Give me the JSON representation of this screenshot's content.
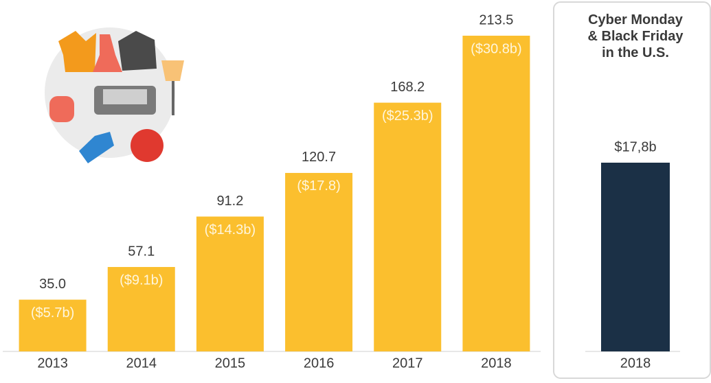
{
  "chart_data": [
    {
      "type": "bar",
      "categories": [
        "2013",
        "2014",
        "2015",
        "2016",
        "2017",
        "2018"
      ],
      "values": [
        35.0,
        57.1,
        91.2,
        120.7,
        168.2,
        213.5
      ],
      "value_labels": [
        "35.0",
        "57.1",
        "91.2",
        "120.7",
        "168.2",
        "213.5"
      ],
      "secondary_labels": [
        "($5.7b)",
        "($9.1b)",
        "($14.3b)",
        "($17.8)",
        "($25.3b)",
        "($30.8b)"
      ],
      "color": "#fbbf2e"
    },
    {
      "type": "bar",
      "title": "Cyber Monday & Black Friday in the U.S.",
      "categories": [
        "2018"
      ],
      "values": [
        17.8
      ],
      "value_labels": [
        "$17,8b"
      ],
      "color": "#1b3046"
    }
  ]
}
